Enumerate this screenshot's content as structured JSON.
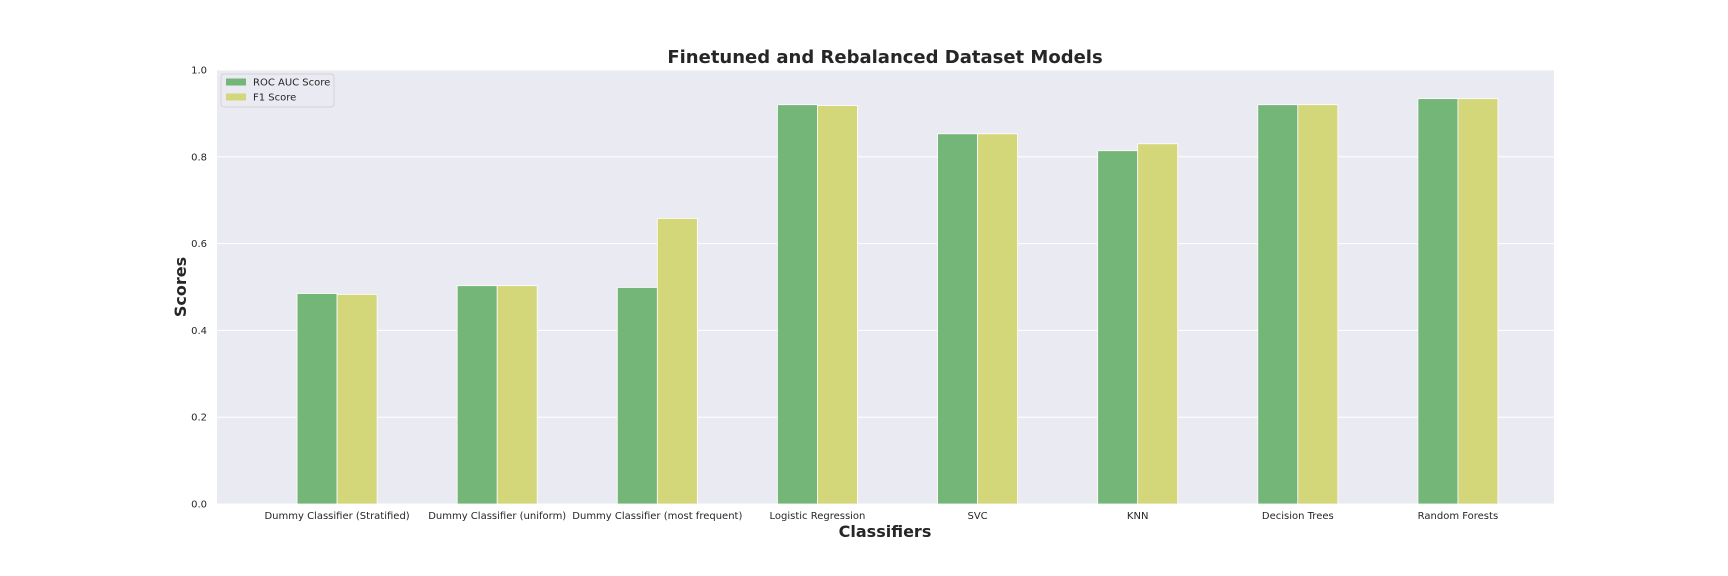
{
  "chart_data": {
    "type": "bar",
    "title": "Finetuned and Rebalanced Dataset Models",
    "xlabel": "Classifiers",
    "ylabel": "Scores",
    "ylim": [
      0,
      1.0
    ],
    "yticks": [
      "0.0",
      "0.2",
      "0.4",
      "0.6",
      "0.8",
      "1.0"
    ],
    "grid": true,
    "legend_position": "top-left",
    "categories": [
      "Dummy Classifier (Stratified)",
      "Dummy Classifier (uniform)",
      "Dummy Classifier (most frequent)",
      "Logistic Regression",
      "SVC",
      "KNN",
      "Decision Trees",
      "Random Forests"
    ],
    "series": [
      {
        "name": "ROC AUC Score",
        "color": "#74b578",
        "values": [
          0.485,
          0.503,
          0.499,
          0.92,
          0.853,
          0.814,
          0.92,
          0.934
        ]
      },
      {
        "name": "F1 Score",
        "color": "#d3d679",
        "values": [
          0.483,
          0.503,
          0.658,
          0.918,
          0.853,
          0.83,
          0.92,
          0.934
        ]
      }
    ],
    "colors": {
      "plot_background": "#eaeaf2",
      "grid": "#ffffff",
      "text": "#262626"
    }
  }
}
